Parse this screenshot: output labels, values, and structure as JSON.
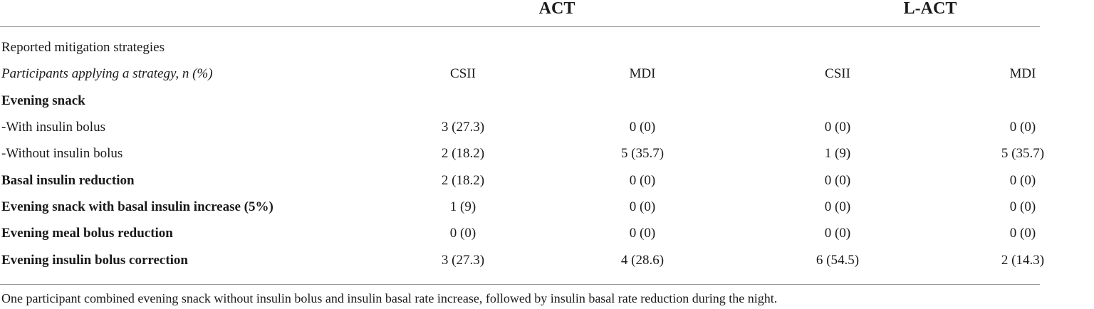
{
  "header": {
    "groups": [
      "ACT",
      "L-ACT"
    ]
  },
  "table": {
    "section_label": "Reported mitigation strategies",
    "subheader": {
      "label": "Participants applying a strategy, n (%)",
      "columns": [
        "CSII",
        "MDI",
        "CSII",
        "MDI"
      ]
    },
    "rows": [
      {
        "label": "Evening snack",
        "bold": true,
        "values": [
          "",
          "",
          "",
          ""
        ]
      },
      {
        "label": "-With insulin bolus",
        "bold": false,
        "values": [
          "3 (27.3)",
          "0 (0)",
          "0 (0)",
          "0 (0)"
        ]
      },
      {
        "label": "-Without insulin bolus",
        "bold": false,
        "values": [
          "2 (18.2)",
          "5 (35.7)",
          "1 (9)",
          "5 (35.7)"
        ]
      },
      {
        "label": "Basal insulin reduction",
        "bold": true,
        "values": [
          "2 (18.2)",
          "0 (0)",
          "0 (0)",
          "0 (0)"
        ]
      },
      {
        "label": "Evening snack with basal insulin increase (5%)",
        "bold": true,
        "values": [
          "1 (9)",
          "0 (0)",
          "0 (0)",
          "0 (0)"
        ]
      },
      {
        "label": "Evening meal bolus reduction",
        "bold": true,
        "values": [
          "0 (0)",
          "0 (0)",
          "0 (0)",
          "0 (0)"
        ]
      },
      {
        "label": "Evening insulin bolus correction",
        "bold": true,
        "values": [
          "3 (27.3)",
          "4 (28.6)",
          "6 (54.5)",
          "2 (14.3)"
        ]
      }
    ]
  },
  "footnote": "One participant combined evening snack without insulin bolus and insulin basal rate increase, followed by insulin basal rate reduction during the night."
}
